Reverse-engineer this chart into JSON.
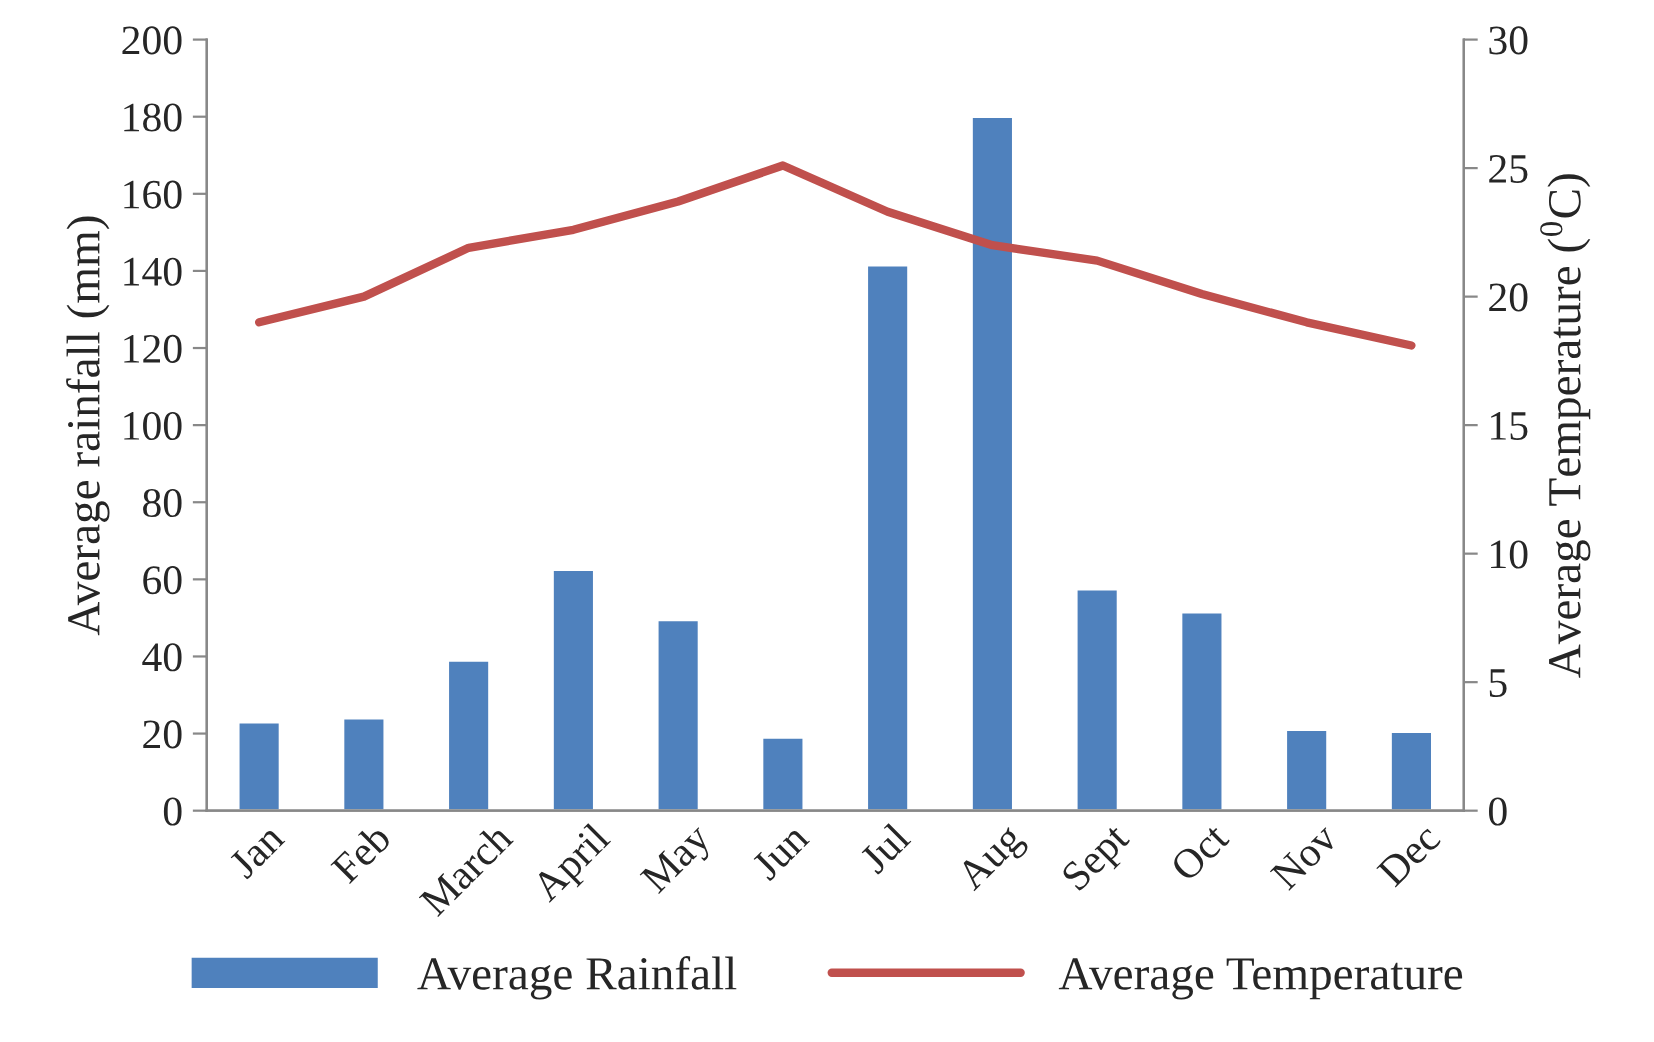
{
  "chart_data": {
    "type": "bar",
    "categories": [
      "Jan",
      "Feb",
      "March",
      "April",
      "May",
      "Jun",
      "Jul",
      "Aug",
      "Sept",
      "Oct",
      "Nov",
      "Dec"
    ],
    "ylabel": "Average rainfall (mm)",
    "y2label": "Average Temperature ($^{0}$C)",
    "series": [
      {
        "name": "Average Rainfall",
        "color": "#4f81bd",
        "values": [
          23,
          24,
          39,
          62.5,
          49.5,
          19,
          141.5,
          180,
          57.5,
          51.5,
          21,
          20.5
        ]
      },
      {
        "name": "Average Temperature",
        "type": "line",
        "axis": "y2",
        "color": "#c0504d",
        "values": [
          19.0,
          20.0,
          21.9,
          22.6,
          23.7,
          25.1,
          23.3,
          22.0,
          21.4,
          20.1,
          19.0,
          18.1
        ]
      }
    ],
    "ylim": [
      0,
      200
    ],
    "yticks": [
      0,
      20,
      40,
      60,
      80,
      100,
      120,
      140,
      160,
      180,
      200
    ],
    "y2lim": [
      0,
      30
    ],
    "y2ticks": [
      0,
      5,
      10,
      15,
      20,
      25,
      30
    ],
    "grid": false,
    "legend": "bottom"
  }
}
